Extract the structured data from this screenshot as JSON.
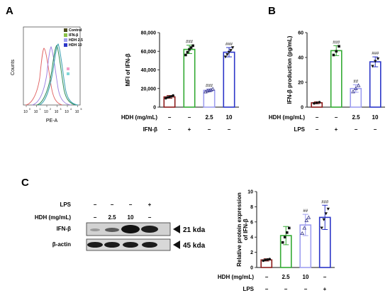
{
  "panels": {
    "A": "A",
    "B": "B",
    "C": "C"
  },
  "colors": {
    "control": "#4b4b1e",
    "ifn": "#8bc34a",
    "lps": "#33aa33",
    "hdh25": "#9e9ef0",
    "hdh10": "#2b35c8",
    "ctrl_bar": "#8b1a1a",
    "flow_red": "#e06060",
    "flow_purple": "#9a7adf",
    "flow_green": "#2e8b57",
    "flow_teal": "#3aa0b0"
  },
  "conditions": {
    "hdh_label": "HDH (mg/mL)",
    "ifn_label": "IFN-β",
    "lps_label": "LPS",
    "minus": "−",
    "plus": "+",
    "d25": "2.5",
    "d10": "10"
  },
  "flow": {
    "ylabel": "Counts",
    "xlabel": "PE-A",
    "legend": [
      {
        "name": "Control",
        "color": "#4b4b1e"
      },
      {
        "name": "IFN-β",
        "color": "#8bc34a"
      },
      {
        "name": "HDH  2.5",
        "color": "#9e9ef0"
      },
      {
        "name": "HDH  10",
        "color": "#2b35c8"
      }
    ],
    "xticks": [
      "10",
      "10",
      "10",
      "10",
      "10",
      "10"
    ],
    "xexp": [
      "0",
      "1",
      "2",
      "3",
      "4",
      "5"
    ]
  },
  "western": {
    "row1": "IFN-β",
    "row2": "β-actin",
    "size1": "21 kda",
    "size2": "45 kda",
    "lps_row": [
      "−",
      "−",
      "−",
      "+"
    ],
    "hdh_row": [
      "−",
      "2.5",
      "10",
      "−"
    ]
  },
  "chart_data": [
    {
      "type": "bar",
      "panel": "A",
      "ylabel": "MFI of IFN-β",
      "ylim": [
        0,
        80000
      ],
      "yticks": [
        "0",
        "20,000",
        "40,000",
        "60,000",
        "80,000"
      ],
      "categories": [
        "Control",
        "IFN-β",
        "HDH 2.5",
        "HDH 10"
      ],
      "values": [
        11000,
        62000,
        18000,
        59000
      ],
      "errors": [
        1500,
        4500,
        1500,
        5000
      ],
      "points": [
        [
          9500,
          10500,
          11000,
          11500,
          12500
        ],
        [
          56000,
          59000,
          62000,
          64000,
          66000
        ],
        [
          16500,
          17500,
          18000,
          18500,
          19500
        ],
        [
          54000,
          56500,
          59000,
          61000,
          64000
        ]
      ],
      "annotations": [
        "",
        "###",
        "###",
        "###"
      ],
      "series_colors": [
        "#8b1a1a",
        "#33aa33",
        "#9e9ef0",
        "#2b35c8"
      ]
    },
    {
      "type": "bar",
      "panel": "B",
      "ylabel": "IFN-β production (pg/mL)",
      "ylim": [
        0,
        60
      ],
      "yticks": [
        "0",
        "20",
        "40",
        "60"
      ],
      "categories": [
        "Control",
        "LPS",
        "HDH 2.5",
        "HDH 10"
      ],
      "values": [
        3.5,
        45.5,
        15,
        36.5
      ],
      "errors": [
        0.8,
        4,
        3,
        4
      ],
      "points": [
        [
          3,
          3.5,
          4
        ],
        [
          42,
          45,
          49
        ],
        [
          12.5,
          15,
          17.5
        ],
        [
          33,
          37,
          39
        ]
      ],
      "annotations": [
        "",
        "###",
        "##",
        "###"
      ],
      "series_colors": [
        "#8b1a1a",
        "#33aa33",
        "#9e9ef0",
        "#2b35c8"
      ]
    },
    {
      "type": "bar",
      "panel": "C",
      "ylabel": "Relative protein expression of IFN-β",
      "ylim": [
        0,
        10
      ],
      "yticks": [
        "0",
        "2",
        "4",
        "6",
        "8",
        "10"
      ],
      "categories": [
        "Control",
        "HDH 2.5",
        "HDH 10",
        "LPS"
      ],
      "values": [
        1.0,
        4.2,
        5.6,
        6.6
      ],
      "errors": [
        0.15,
        1.2,
        1.4,
        1.6
      ],
      "points": [
        [
          0.9,
          1.0,
          1.05,
          1.1
        ],
        [
          3.3,
          4.0,
          4.6,
          5.2
        ],
        [
          4.5,
          5.2,
          6.2,
          6.6
        ],
        [
          5.2,
          6.3,
          7.1,
          7.7
        ]
      ],
      "annotations": [
        "",
        "",
        "##",
        "###"
      ],
      "series_colors": [
        "#8b1a1a",
        "#33aa33",
        "#9e9ef0",
        "#2b35c8"
      ]
    }
  ]
}
